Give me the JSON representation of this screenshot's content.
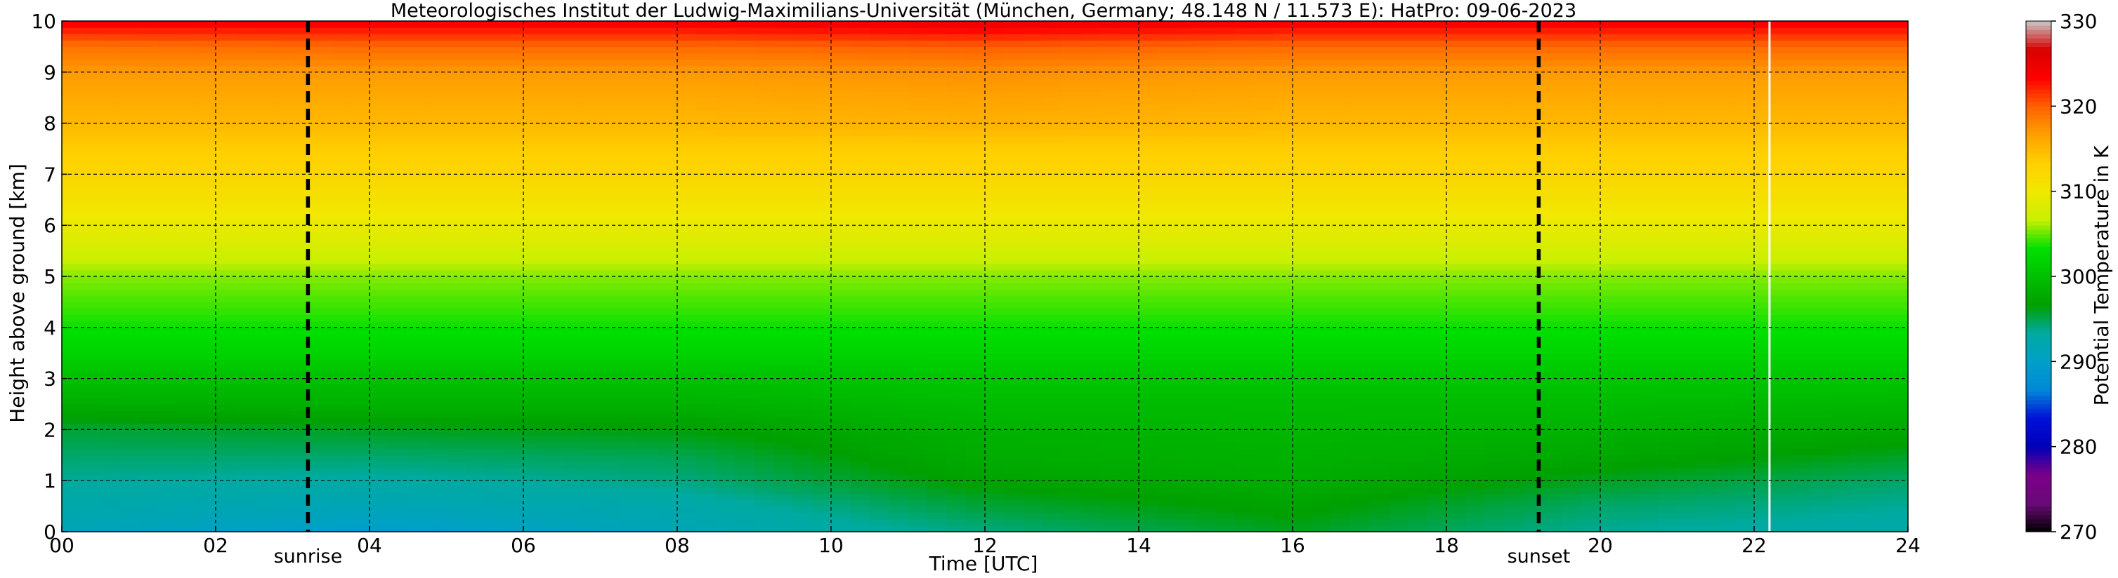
{
  "chart_data": {
    "type": "heatmap",
    "title": "Meteorologisches Institut der Ludwig-Maximilians-Universität (München, Germany; 48.148 N / 11.573 E):    HatPro: 09-06-2023",
    "xlabel": "Time [UTC]",
    "ylabel": "Height above ground [km]",
    "xlim": [
      0,
      24
    ],
    "ylim": [
      0,
      10
    ],
    "x_ticks": [
      "00",
      "02",
      "04",
      "06",
      "08",
      "10",
      "12",
      "14",
      "16",
      "18",
      "20",
      "22",
      "24"
    ],
    "y_ticks": [
      "0",
      "1",
      "2",
      "3",
      "4",
      "5",
      "6",
      "7",
      "8",
      "9",
      "10"
    ],
    "grid": true,
    "colorbar": {
      "label": "Potential Temperature in K",
      "range": [
        270,
        330
      ],
      "ticks": [
        "270",
        "280",
        "290",
        "300",
        "310",
        "320",
        "330"
      ],
      "colors": [
        "#000000",
        "#6a0a78",
        "#7a0088",
        "#0000b8",
        "#0010d8",
        "#0088d8",
        "#00a0c8",
        "#00aaa0",
        "#00a000",
        "#00c000",
        "#00e000",
        "#c8f000",
        "#f0e800",
        "#ffd000",
        "#ffa000",
        "#ff6000",
        "#ff0000",
        "#d80000",
        "#c8c8c8"
      ]
    },
    "events": [
      {
        "label": "sunrise",
        "time": 3.2
      },
      {
        "label": "sunset",
        "time": 19.2
      }
    ],
    "data_gap_time": 22.2,
    "profiles": [
      {
        "time": 0,
        "heights": [
          0,
          0.5,
          1,
          1.5,
          2,
          2.5,
          3,
          3.5,
          4,
          4.5,
          5,
          5.5,
          6,
          6.5,
          7,
          7.5,
          8,
          8.5,
          9,
          9.5,
          10
        ],
        "theta": [
          291.5,
          292.5,
          293.5,
          294.5,
          295.5,
          298,
          300,
          302,
          303.5,
          304.5,
          305.5,
          307.5,
          309.5,
          311,
          312.5,
          313.5,
          315,
          316,
          317,
          319,
          324
        ]
      },
      {
        "time": 4,
        "heights": [
          0,
          0.5,
          1,
          1.5,
          2,
          2.5,
          3,
          3.5,
          4,
          4.5,
          5,
          5.5,
          6,
          6.5,
          7,
          7.5,
          8,
          8.5,
          9,
          9.5,
          10
        ],
        "theta": [
          289.5,
          291.5,
          293,
          294.5,
          296,
          298.5,
          300,
          302,
          303.5,
          304.5,
          305.5,
          307.5,
          309.5,
          311,
          312.5,
          313.5,
          315,
          316,
          317,
          319.5,
          324
        ]
      },
      {
        "time": 8,
        "heights": [
          0,
          0.5,
          1,
          1.5,
          2,
          2.5,
          3,
          3.5,
          4,
          4.5,
          5,
          5.5,
          6,
          6.5,
          7,
          7.5,
          8,
          8.5,
          9,
          9.5,
          10
        ],
        "theta": [
          291.5,
          292.5,
          294,
          295,
          296.5,
          298.5,
          300,
          302,
          303.5,
          304.5,
          305.5,
          307.5,
          309.5,
          311,
          312.5,
          313.5,
          315,
          316,
          317,
          319.5,
          324
        ]
      },
      {
        "time": 12,
        "heights": [
          0,
          0.5,
          1,
          1.5,
          2,
          2.5,
          3,
          3.5,
          4,
          4.5,
          5,
          5.5,
          6,
          6.5,
          7,
          7.5,
          8,
          8.5,
          9,
          9.5,
          10
        ],
        "theta": [
          294,
          295.5,
          297,
          298,
          298.5,
          299.5,
          300.5,
          302,
          303.5,
          304.5,
          305.5,
          307.5,
          309.5,
          311,
          312.5,
          313.5,
          315.5,
          316.5,
          317.5,
          320,
          325
        ]
      },
      {
        "time": 16,
        "heights": [
          0,
          0.5,
          1,
          1.5,
          2,
          2.5,
          3,
          3.5,
          4,
          4.5,
          5,
          5.5,
          6,
          6.5,
          7,
          7.5,
          8,
          8.5,
          9,
          9.5,
          10
        ],
        "theta": [
          296,
          297,
          298,
          298.5,
          299,
          299.5,
          300.5,
          302,
          303.5,
          304.5,
          305.5,
          307.5,
          309.5,
          311,
          312.5,
          313.5,
          315,
          316,
          317,
          319.5,
          324
        ]
      },
      {
        "time": 20,
        "heights": [
          0,
          0.5,
          1,
          1.5,
          2,
          2.5,
          3,
          3.5,
          4,
          4.5,
          5,
          5.5,
          6,
          6.5,
          7,
          7.5,
          8,
          8.5,
          9,
          9.5,
          10
        ],
        "theta": [
          293.5,
          294.5,
          296,
          297.5,
          298.5,
          299.5,
          300.5,
          302,
          303.5,
          304.5,
          305.5,
          307.5,
          309.5,
          311,
          312.5,
          313.5,
          315,
          316,
          317,
          319.5,
          324
        ]
      },
      {
        "time": 24,
        "heights": [
          0,
          0.5,
          1,
          1.5,
          2,
          2.5,
          3,
          3.5,
          4,
          4.5,
          5,
          5.5,
          6,
          6.5,
          7,
          7.5,
          8,
          8.5,
          9,
          9.5,
          10
        ],
        "theta": [
          292.5,
          293.5,
          294.5,
          296,
          297.5,
          299,
          300.5,
          302,
          303.5,
          304.5,
          305.5,
          307.5,
          309.5,
          311,
          312.5,
          313.5,
          315,
          316,
          317,
          319.5,
          324
        ]
      }
    ]
  }
}
